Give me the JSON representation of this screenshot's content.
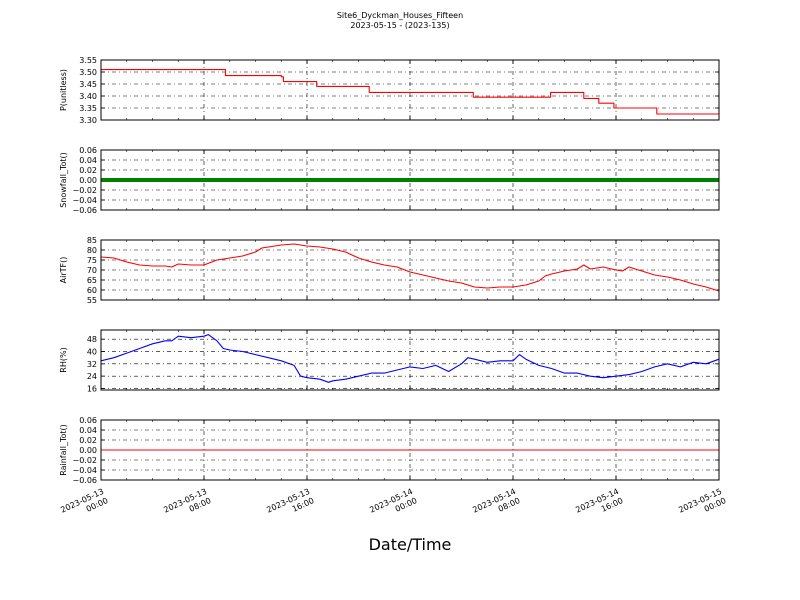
{
  "title": "Site6_Dyckman_Houses_Fifteen",
  "subtitle": "2023-05-15 - (2023-135)",
  "chart_data": {
    "type": "line",
    "xlabel": "Date/Time",
    "x_range": [
      "2023-05-13 00:00",
      "2023-05-15 00:00"
    ],
    "x_ticks": [
      {
        "value": "2023-05-13 00:00",
        "lines": [
          "2023-05-13",
          "00:00"
        ]
      },
      {
        "value": "2023-05-13 08:00",
        "lines": [
          "2023-05-13",
          "08:00"
        ]
      },
      {
        "value": "2023-05-13 16:00",
        "lines": [
          "2023-05-13",
          "16:00"
        ]
      },
      {
        "value": "2023-05-14 00:00",
        "lines": [
          "2023-05-14",
          "00:00"
        ]
      },
      {
        "value": "2023-05-14 08:00",
        "lines": [
          "2023-05-14",
          "08:00"
        ]
      },
      {
        "value": "2023-05-14 16:00",
        "lines": [
          "2023-05-14",
          "16:00"
        ]
      },
      {
        "value": "2023-05-15 00:00",
        "lines": [
          "2023-05-15",
          "00:00"
        ]
      }
    ],
    "grid": true,
    "panels": [
      {
        "ylabel": "P(unitless)",
        "ylim": [
          3.3,
          3.55
        ],
        "yticks": [
          "3.55",
          "3.50",
          "3.45",
          "3.40",
          "3.35",
          "3.30"
        ],
        "color": "#ff0000",
        "style": "step",
        "points": [
          [
            "2023-05-13 00:00",
            3.51
          ],
          [
            "2023-05-13 09:30",
            3.51
          ],
          [
            "2023-05-13 09:40",
            3.485
          ],
          [
            "2023-05-13 14:00",
            3.48
          ],
          [
            "2023-05-13 14:10",
            3.46
          ],
          [
            "2023-05-13 16:30",
            3.46
          ],
          [
            "2023-05-13 16:45",
            3.44
          ],
          [
            "2023-05-13 20:40",
            3.44
          ],
          [
            "2023-05-13 20:50",
            3.415
          ],
          [
            "2023-05-14 04:45",
            3.415
          ],
          [
            "2023-05-14 04:55",
            3.395
          ],
          [
            "2023-05-14 10:45",
            3.395
          ],
          [
            "2023-05-14 10:55",
            3.415
          ],
          [
            "2023-05-14 13:20",
            3.415
          ],
          [
            "2023-05-14 13:30",
            3.39
          ],
          [
            "2023-05-14 14:30",
            3.39
          ],
          [
            "2023-05-14 14:40",
            3.37
          ],
          [
            "2023-05-14 15:40",
            3.37
          ],
          [
            "2023-05-14 15:50",
            3.35
          ],
          [
            "2023-05-14 19:00",
            3.35
          ],
          [
            "2023-05-14 19:10",
            3.325
          ],
          [
            "2023-05-15 00:00",
            3.325
          ]
        ]
      },
      {
        "ylabel": "Snowfall_Tot()",
        "ylim": [
          -0.06,
          0.06
        ],
        "yticks": [
          "0.06",
          "0.04",
          "0.02",
          "0.00",
          "−0.02",
          "−0.04",
          "−0.06"
        ],
        "color": "#008000",
        "style": "thick",
        "points": [
          [
            "2023-05-13 00:00",
            0.0
          ],
          [
            "2023-05-15 00:00",
            0.0
          ]
        ]
      },
      {
        "ylabel": "AirTF()",
        "ylim": [
          55,
          85
        ],
        "yticks": [
          "85",
          "80",
          "75",
          "70",
          "65",
          "60",
          "55"
        ],
        "color": "#ff0000",
        "style": "line",
        "points": [
          [
            "2023-05-13 00:00",
            76.5
          ],
          [
            "2023-05-13 01:00",
            76
          ],
          [
            "2023-05-13 02:00",
            74
          ],
          [
            "2023-05-13 03:00",
            72.5
          ],
          [
            "2023-05-13 04:00",
            72
          ],
          [
            "2023-05-13 05:00",
            72
          ],
          [
            "2023-05-13 05:30",
            71.5
          ],
          [
            "2023-05-13 06:00",
            73
          ],
          [
            "2023-05-13 07:00",
            72.5
          ],
          [
            "2023-05-13 08:00",
            72.5
          ],
          [
            "2023-05-13 09:00",
            75
          ],
          [
            "2023-05-13 10:00",
            76
          ],
          [
            "2023-05-13 11:00",
            77
          ],
          [
            "2023-05-13 12:00",
            79
          ],
          [
            "2023-05-13 12:30",
            81
          ],
          [
            "2023-05-13 13:00",
            81.5
          ],
          [
            "2023-05-13 14:00",
            82.5
          ],
          [
            "2023-05-13 15:00",
            83
          ],
          [
            "2023-05-13 16:00",
            82
          ],
          [
            "2023-05-13 17:00",
            81.5
          ],
          [
            "2023-05-13 18:00",
            80.5
          ],
          [
            "2023-05-13 19:00",
            79
          ],
          [
            "2023-05-13 20:00",
            76
          ],
          [
            "2023-05-13 21:00",
            74
          ],
          [
            "2023-05-13 22:00",
            72.5
          ],
          [
            "2023-05-13 23:00",
            71.5
          ],
          [
            "2023-05-14 00:00",
            69
          ],
          [
            "2023-05-14 01:00",
            67.5
          ],
          [
            "2023-05-14 02:00",
            66
          ],
          [
            "2023-05-14 03:00",
            64.5
          ],
          [
            "2023-05-14 04:00",
            63.5
          ],
          [
            "2023-05-14 05:00",
            61.5
          ],
          [
            "2023-05-14 06:00",
            61
          ],
          [
            "2023-05-14 07:00",
            61.5
          ],
          [
            "2023-05-14 08:00",
            61.5
          ],
          [
            "2023-05-14 09:00",
            62.5
          ],
          [
            "2023-05-14 10:00",
            64.5
          ],
          [
            "2023-05-14 10:30",
            67
          ],
          [
            "2023-05-14 11:00",
            68
          ],
          [
            "2023-05-14 12:00",
            69.5
          ],
          [
            "2023-05-14 13:00",
            70.5
          ],
          [
            "2023-05-14 13:30",
            72.5
          ],
          [
            "2023-05-14 14:00",
            70.5
          ],
          [
            "2023-05-14 15:00",
            71.5
          ],
          [
            "2023-05-14 16:00",
            70
          ],
          [
            "2023-05-14 16:30",
            69.5
          ],
          [
            "2023-05-14 17:00",
            71.5
          ],
          [
            "2023-05-14 18:00",
            69.5
          ],
          [
            "2023-05-14 19:00",
            67.5
          ],
          [
            "2023-05-14 20:00",
            66.5
          ],
          [
            "2023-05-14 21:00",
            65
          ],
          [
            "2023-05-14 22:00",
            63
          ],
          [
            "2023-05-14 23:00",
            61.5
          ],
          [
            "2023-05-15 00:00",
            59.5
          ]
        ]
      },
      {
        "ylabel": "RH(%)",
        "ylim": [
          15,
          54
        ],
        "yticks": [
          "48",
          "40",
          "32",
          "24",
          "16"
        ],
        "color": "#0000ff",
        "style": "line",
        "points": [
          [
            "2023-05-13 00:00",
            34
          ],
          [
            "2023-05-13 01:00",
            36
          ],
          [
            "2023-05-13 02:00",
            39
          ],
          [
            "2023-05-13 03:00",
            42
          ],
          [
            "2023-05-13 04:00",
            45
          ],
          [
            "2023-05-13 05:00",
            47
          ],
          [
            "2023-05-13 05:30",
            47
          ],
          [
            "2023-05-13 06:00",
            50
          ],
          [
            "2023-05-13 07:00",
            49
          ],
          [
            "2023-05-13 08:00",
            50
          ],
          [
            "2023-05-13 08:20",
            51
          ],
          [
            "2023-05-13 09:00",
            47
          ],
          [
            "2023-05-13 09:30",
            42
          ],
          [
            "2023-05-13 10:00",
            41
          ],
          [
            "2023-05-13 11:00",
            40
          ],
          [
            "2023-05-13 12:00",
            38
          ],
          [
            "2023-05-13 13:00",
            36
          ],
          [
            "2023-05-13 14:00",
            34
          ],
          [
            "2023-05-13 15:00",
            31
          ],
          [
            "2023-05-13 15:30",
            24
          ],
          [
            "2023-05-13 16:00",
            23
          ],
          [
            "2023-05-13 17:00",
            22
          ],
          [
            "2023-05-13 17:40",
            20
          ],
          [
            "2023-05-13 18:00",
            21
          ],
          [
            "2023-05-13 19:00",
            22
          ],
          [
            "2023-05-13 20:00",
            24
          ],
          [
            "2023-05-13 21:00",
            26
          ],
          [
            "2023-05-13 22:00",
            26
          ],
          [
            "2023-05-13 23:00",
            28
          ],
          [
            "2023-05-14 00:00",
            30
          ],
          [
            "2023-05-14 01:00",
            29
          ],
          [
            "2023-05-14 02:00",
            31
          ],
          [
            "2023-05-14 03:00",
            27
          ],
          [
            "2023-05-14 04:00",
            32
          ],
          [
            "2023-05-14 04:30",
            36
          ],
          [
            "2023-05-14 05:00",
            35
          ],
          [
            "2023-05-14 06:00",
            33
          ],
          [
            "2023-05-14 07:00",
            34
          ],
          [
            "2023-05-14 08:00",
            34
          ],
          [
            "2023-05-14 08:30",
            38
          ],
          [
            "2023-05-14 09:00",
            35
          ],
          [
            "2023-05-14 09:30",
            33
          ],
          [
            "2023-05-14 10:00",
            31
          ],
          [
            "2023-05-14 11:00",
            29
          ],
          [
            "2023-05-14 12:00",
            26
          ],
          [
            "2023-05-14 13:00",
            26
          ],
          [
            "2023-05-14 14:00",
            24
          ],
          [
            "2023-05-14 15:00",
            23
          ],
          [
            "2023-05-14 16:00",
            24
          ],
          [
            "2023-05-14 17:00",
            25
          ],
          [
            "2023-05-14 18:00",
            27
          ],
          [
            "2023-05-14 19:00",
            30
          ],
          [
            "2023-05-14 20:00",
            32
          ],
          [
            "2023-05-14 21:00",
            30
          ],
          [
            "2023-05-14 22:00",
            33
          ],
          [
            "2023-05-14 23:00",
            32
          ],
          [
            "2023-05-15 00:00",
            35
          ]
        ]
      },
      {
        "ylabel": "Rainfall_Tot()",
        "ylim": [
          -0.06,
          0.06
        ],
        "yticks": [
          "0.06",
          "0.04",
          "0.02",
          "0.00",
          "−0.02",
          "−0.04",
          "−0.06"
        ],
        "color": "#ff0000",
        "style": "line",
        "points": [
          [
            "2023-05-13 00:00",
            0.0
          ],
          [
            "2023-05-15 00:00",
            0.0
          ]
        ]
      }
    ]
  }
}
